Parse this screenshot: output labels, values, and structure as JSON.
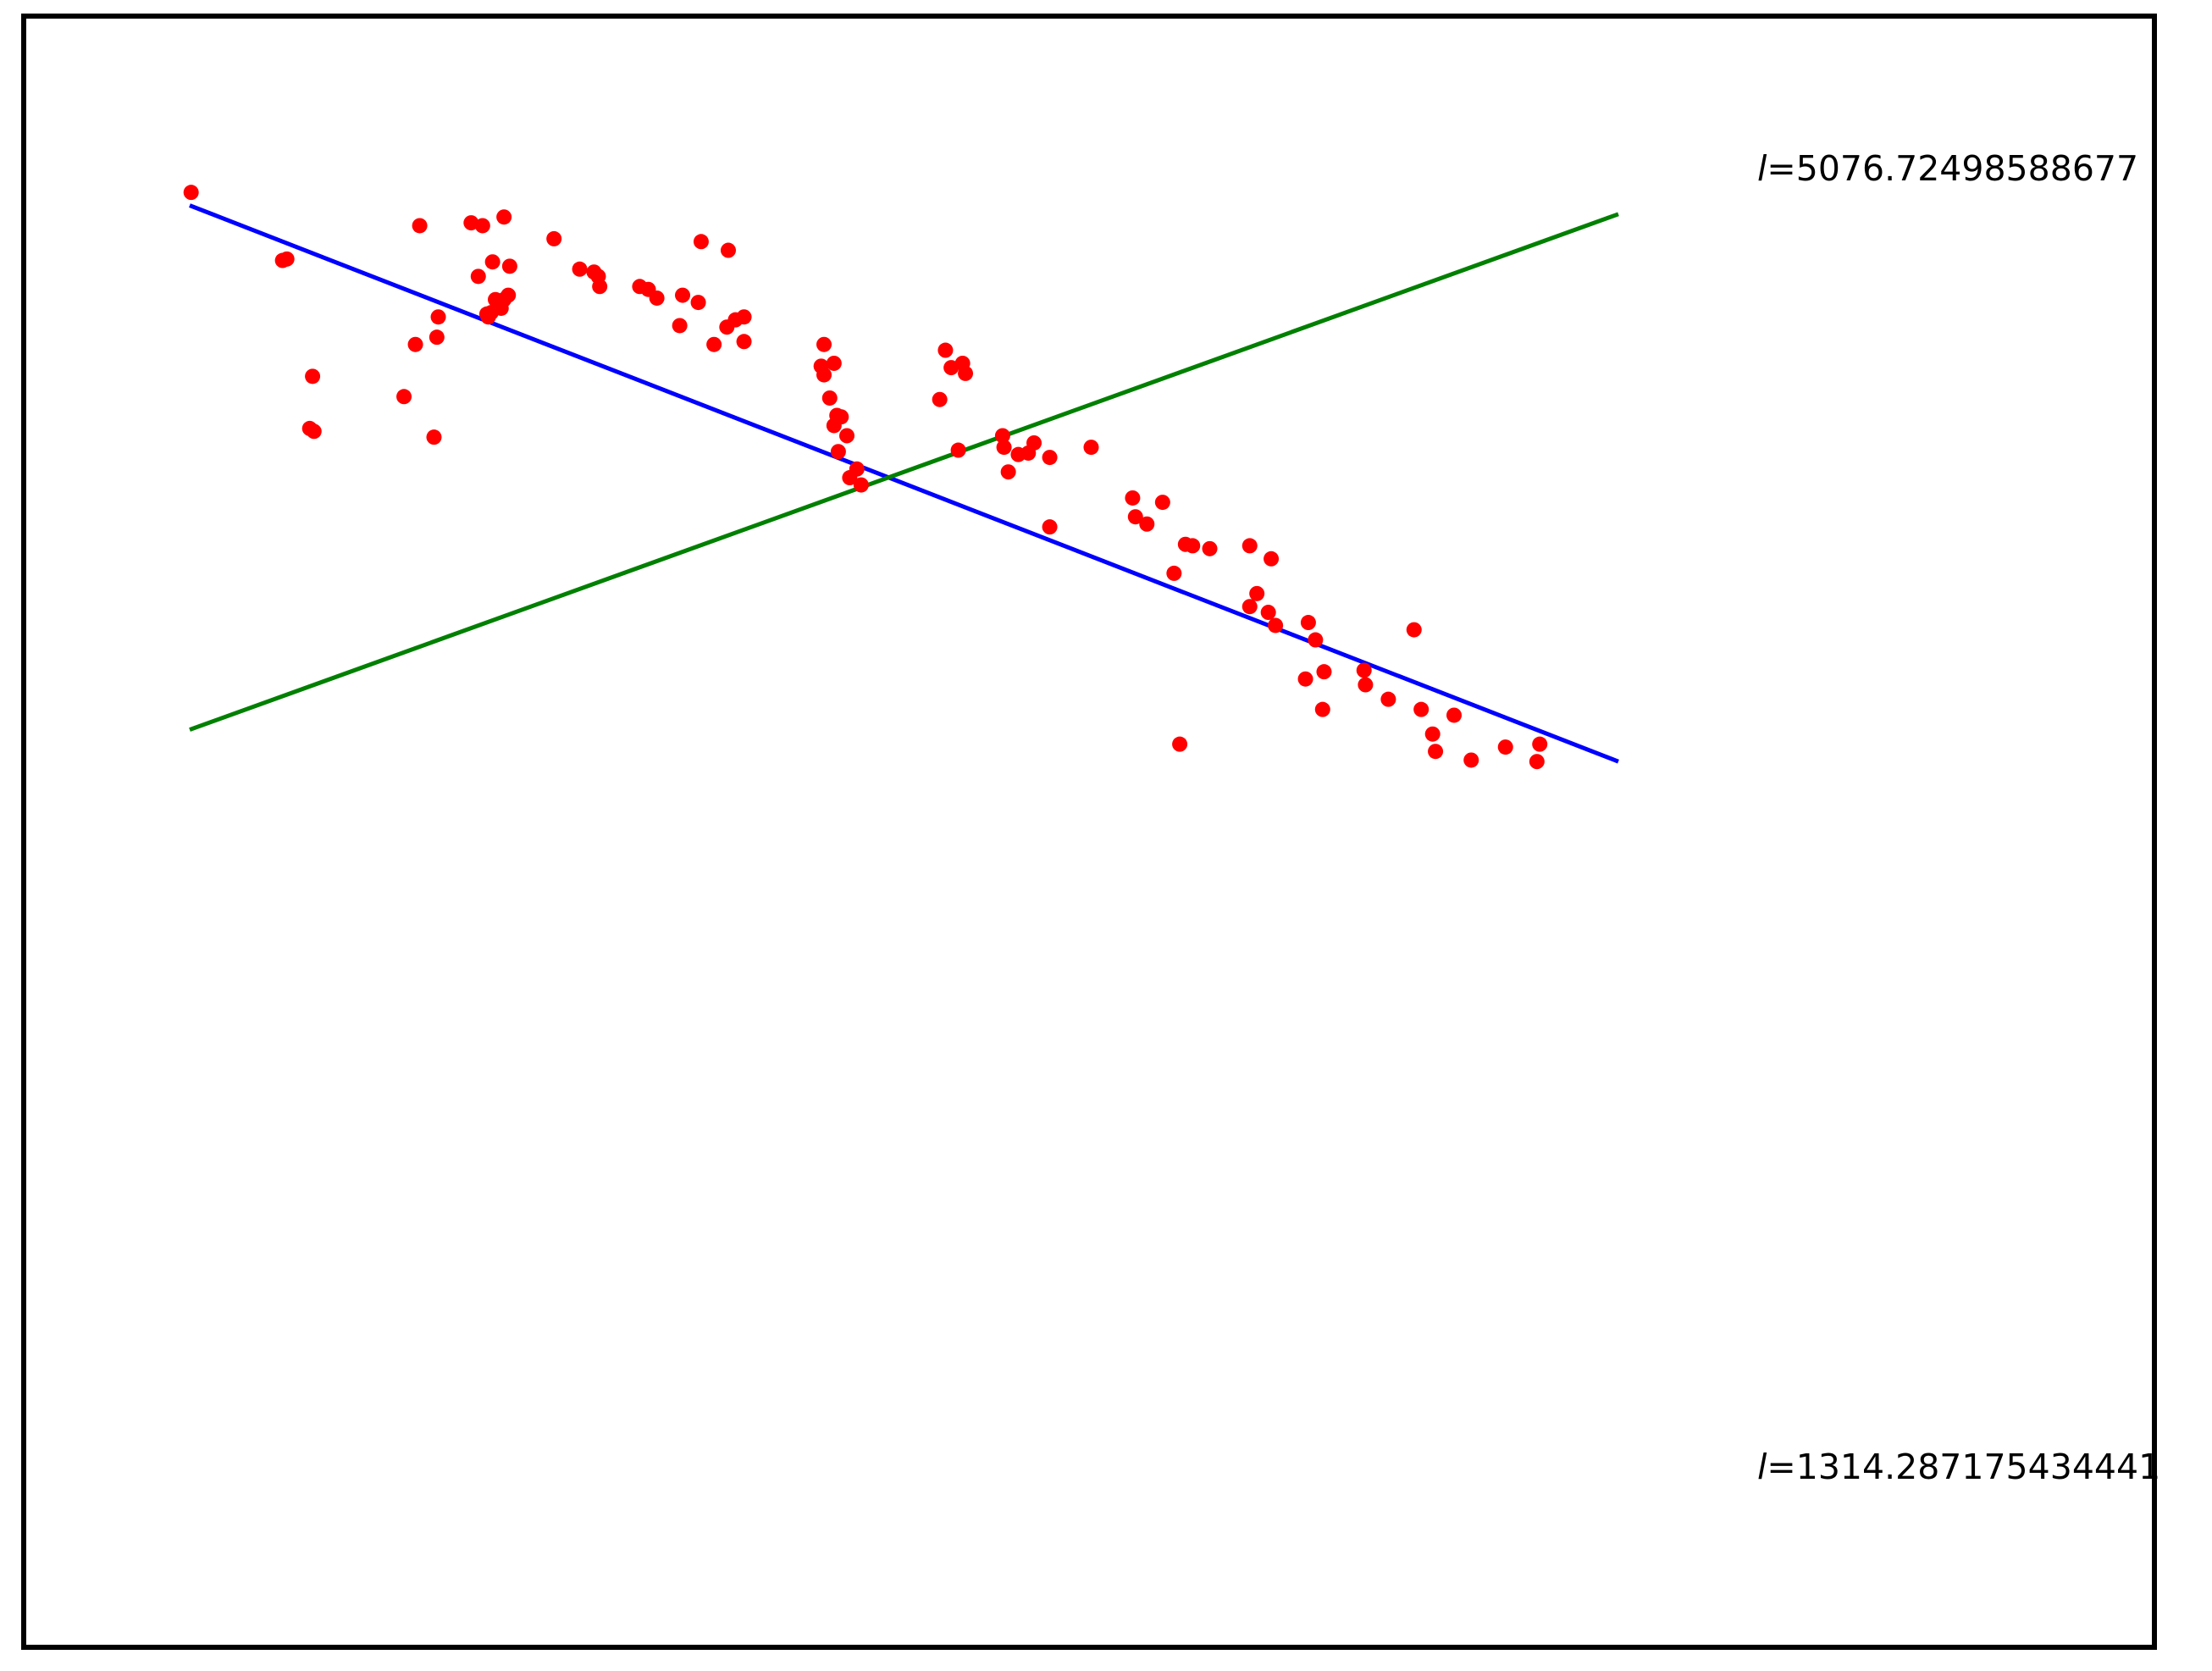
{
  "chart_data": {
    "type": "scatter",
    "title": "",
    "xlabel": "",
    "ylabel": "",
    "axes_visible": false,
    "grid": false,
    "xlim": [
      0,
      1000
    ],
    "ylim": [
      0,
      1000
    ],
    "colors": {
      "points": "#ff0000",
      "line_major": "#0000ff",
      "line_minor": "#008000",
      "frame": "#000000"
    },
    "points": {
      "x": [
        1,
        65,
        68,
        84,
        86,
        87,
        171,
        150,
        158,
        173,
        174,
        208,
        209,
        211,
        218,
        220,
        214,
        223,
        202,
        212,
        224,
        161,
        197,
        205,
        220,
        255,
        273,
        283,
        286,
        287,
        358,
        377,
        345,
        356,
        315,
        321,
        327,
        343,
        367,
        376,
        388,
        382,
        388,
        442,
        444,
        451,
        444,
        448,
        453,
        456,
        451,
        460,
        454,
        467,
        462,
        470,
        525,
        529,
        533,
        541,
        543,
        538,
        580,
        569,
        570,
        573,
        587,
        591,
        602,
        631,
        602,
        660,
        681,
        662,
        670,
        697,
        702,
        714,
        689,
        757,
        742,
        747,
        742,
        755,
        760,
        783,
        794,
        793,
        788,
        781,
        823,
        822,
        857,
        839,
        872,
        862,
        885,
        897,
        870,
        693,
        921,
        943,
        945
      ],
      "y": [
        96,
        143,
        142,
        259,
        223,
        261,
        265,
        237,
        201,
        196,
        182,
        180,
        182,
        179,
        176,
        170,
        170,
        167,
        154,
        144,
        147,
        119,
        117,
        119,
        113,
        128,
        149,
        151,
        154,
        161,
        130,
        136,
        167,
        172,
        161,
        163,
        169,
        188,
        201,
        189,
        182,
        184,
        199,
        216,
        201,
        214,
        222,
        238,
        250,
        251,
        257,
        264,
        275,
        287,
        293,
        298,
        239,
        205,
        217,
        214,
        221,
        274,
        277,
        264,
        272,
        289,
        276,
        269,
        279,
        272,
        327,
        307,
        310,
        320,
        325,
        339,
        340,
        342,
        359,
        349,
        340,
        373,
        382,
        386,
        395,
        393,
        427,
        453,
        405,
        432,
        436,
        426,
        398,
        446,
        482,
        453,
        457,
        488,
        470,
        477,
        479,
        489,
        477
      ],
      "values_note": ""
    },
    "lines": [
      {
        "id": "major-axis",
        "color": "#0000ff",
        "from": [
          0,
          105
        ],
        "to": [
          1000,
          489
        ]
      },
      {
        "id": "minor-axis",
        "color": "#008000",
        "from": [
          0,
          467
        ],
        "to": [
          1000,
          111
        ]
      }
    ],
    "annotations": [
      {
        "id": "top",
        "prefix": "l",
        "text": "=5076.72498588677"
      },
      {
        "id": "bottom",
        "prefix": "l",
        "text": "=1314.287175434441"
      }
    ]
  }
}
